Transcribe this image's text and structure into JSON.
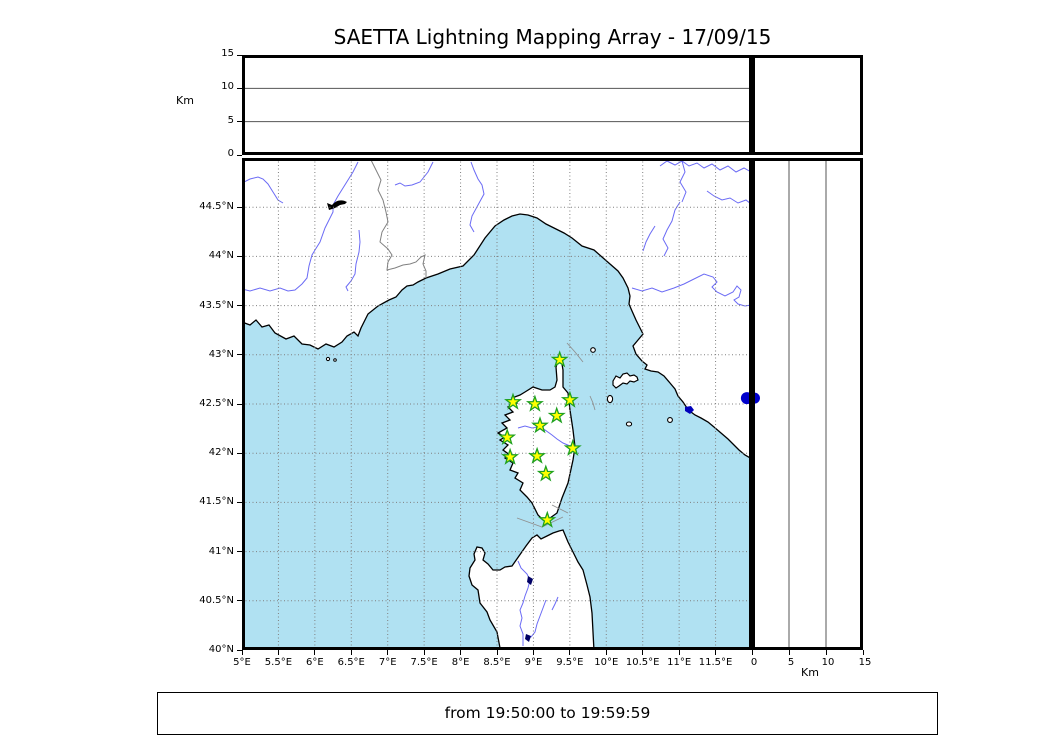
{
  "title": "SAETTA Lightning Mapping Array - 17/09/15",
  "footer": {
    "time_range": "from 19:50:00 to 19:59:59"
  },
  "axes": {
    "altitude": {
      "label": "Km",
      "min": 0,
      "max": 15,
      "ticks": [
        {
          "value": 0,
          "label": "0"
        },
        {
          "value": 5,
          "label": "5"
        },
        {
          "value": 10,
          "label": "10"
        },
        {
          "value": 15,
          "label": "15"
        }
      ],
      "gridlines": [
        5,
        10
      ]
    },
    "latitude": {
      "min": 40,
      "max": 45,
      "ticks": [
        {
          "value": 44.5,
          "label": "44.5°N"
        },
        {
          "value": 44,
          "label": "44°N"
        },
        {
          "value": 43.5,
          "label": "43.5°N"
        },
        {
          "value": 43,
          "label": "43°N"
        },
        {
          "value": 42.5,
          "label": "42.5°N"
        },
        {
          "value": 42,
          "label": "42°N"
        },
        {
          "value": 41.5,
          "label": "41.5°N"
        },
        {
          "value": 41,
          "label": "41°N"
        },
        {
          "value": 40.5,
          "label": "40.5°N"
        },
        {
          "value": 40,
          "label": "40°N"
        }
      ]
    },
    "longitude": {
      "min": 5,
      "max": 12,
      "ticks": [
        {
          "value": 5,
          "label": "5°E"
        },
        {
          "value": 5.5,
          "label": "5.5°E"
        },
        {
          "value": 6,
          "label": "6°E"
        },
        {
          "value": 6.5,
          "label": "6.5°E"
        },
        {
          "value": 7,
          "label": "7°E"
        },
        {
          "value": 7.5,
          "label": "7.5°E"
        },
        {
          "value": 8,
          "label": "8°E"
        },
        {
          "value": 8.5,
          "label": "8.5°E"
        },
        {
          "value": 9,
          "label": "9°E"
        },
        {
          "value": 9.5,
          "label": "9.5°E"
        },
        {
          "value": 10,
          "label": "10°E"
        },
        {
          "value": 10.5,
          "label": "10.5°E"
        },
        {
          "value": 11,
          "label": "11°E"
        },
        {
          "value": 11.5,
          "label": "11.5°E"
        }
      ]
    }
  },
  "map": {
    "stations": [
      {
        "lon": 9.36,
        "lat": 42.95
      },
      {
        "lon": 8.72,
        "lat": 42.52
      },
      {
        "lon": 9.02,
        "lat": 42.5
      },
      {
        "lon": 9.5,
        "lat": 42.54
      },
      {
        "lon": 9.32,
        "lat": 42.38
      },
      {
        "lon": 9.09,
        "lat": 42.28
      },
      {
        "lon": 8.64,
        "lat": 42.16
      },
      {
        "lon": 9.54,
        "lat": 42.05
      },
      {
        "lon": 8.68,
        "lat": 41.96
      },
      {
        "lon": 9.05,
        "lat": 41.97
      },
      {
        "lon": 9.17,
        "lat": 41.79
      },
      {
        "lon": 9.19,
        "lat": 41.32
      }
    ],
    "sources": [
      {
        "lon": 11.93,
        "lat": 42.56,
        "alt_km": 0
      }
    ],
    "colors": {
      "sea": "#b0e1f2",
      "land": "#ffffff",
      "coast": "#000000",
      "river": "#6b6bf5",
      "grid": "#808080",
      "country_border": "#808080",
      "station_fill": "#ffff00",
      "station_edge": "#1fa11f",
      "source_dot": "#0000cc",
      "lake": "#000066"
    }
  }
}
